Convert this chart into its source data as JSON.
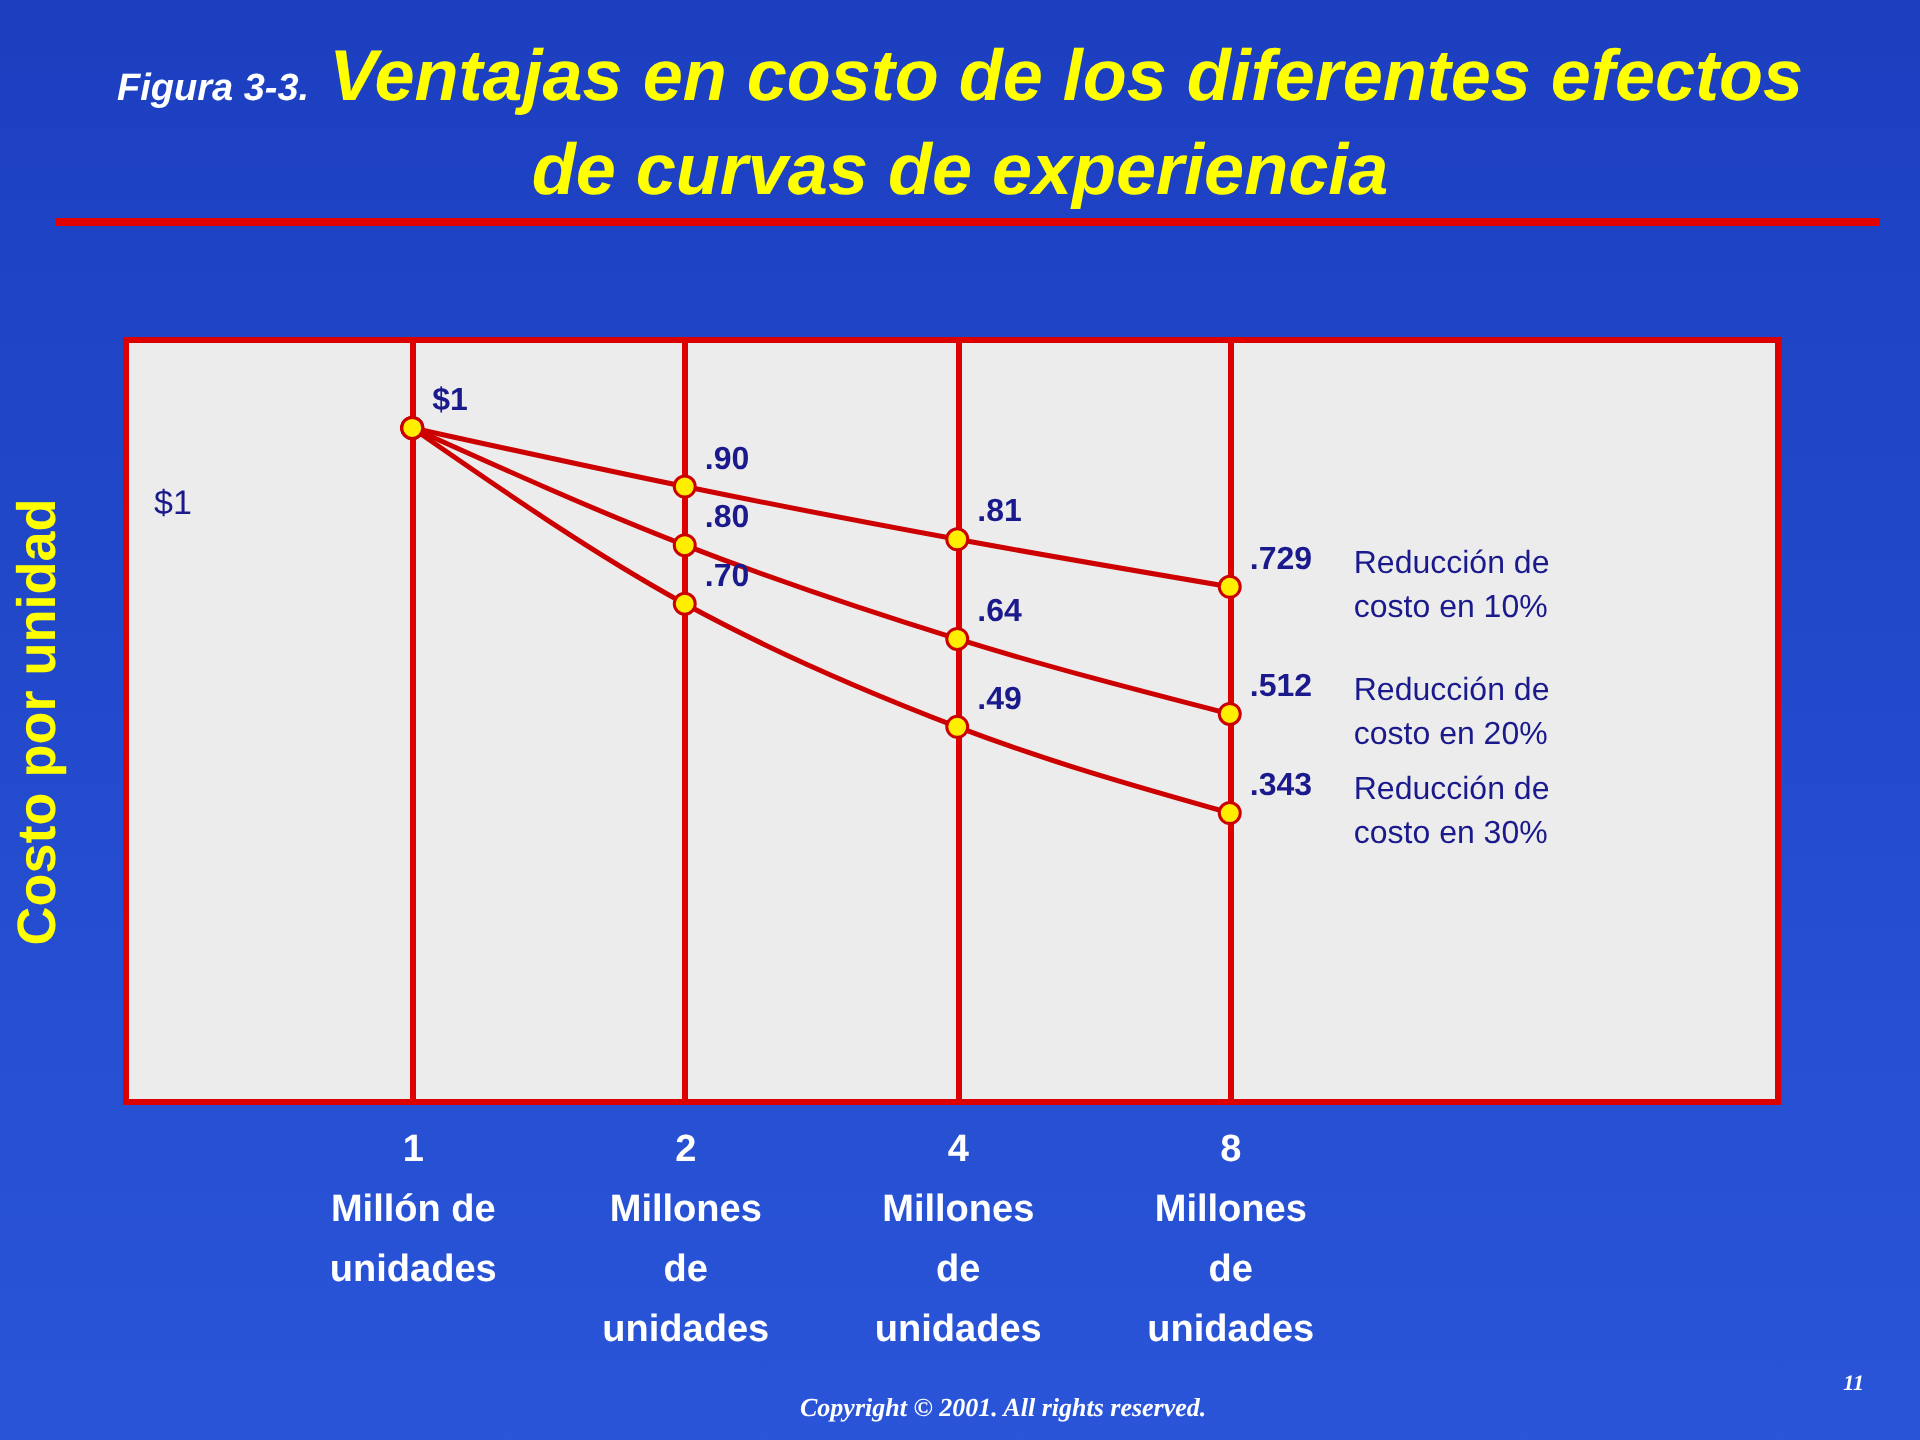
{
  "chart_data": {
    "type": "line",
    "title": "Ventajas en costo de los diferentes efectos de curvas de experiencia",
    "subtitle": "Figura 3-3.",
    "ylabel": "Costo por unidad",
    "categories": [
      "1\nMillón de\nunidades",
      "2\nMillones\nde\nunidades",
      "4\nMillones\nde\nunidades",
      "8\nMillones\nde\nunidades"
    ],
    "series": [
      {
        "name": "Reducción de costo en 10%",
        "color": "#cc0000",
        "values": [
          1,
          0.9,
          0.81,
          0.729
        ],
        "value_labels": [
          "$1",
          ".90",
          ".81",
          ".729"
        ]
      },
      {
        "name": "Reducción de costo en 20%",
        "color": "#cc0000",
        "values": [
          1,
          0.8,
          0.64,
          0.512
        ],
        "value_labels": [
          null,
          ".80",
          ".64",
          ".512"
        ]
      },
      {
        "name": "Reducción de costo en 30%",
        "color": "#cc0000",
        "values": [
          1,
          0.7,
          0.49,
          0.343
        ],
        "value_labels": [
          null,
          ".70",
          ".49",
          ".343"
        ]
      }
    ],
    "ylim": [
      -0.15,
      1.15
    ],
    "tick_labels": "x",
    "grid": "x",
    "marker": "circle",
    "line_style": "solid",
    "legend": false,
    "annotations": [
      "Copyright © 2001. All rights reserved.",
      "11",
      "$1"
    ]
  }
}
